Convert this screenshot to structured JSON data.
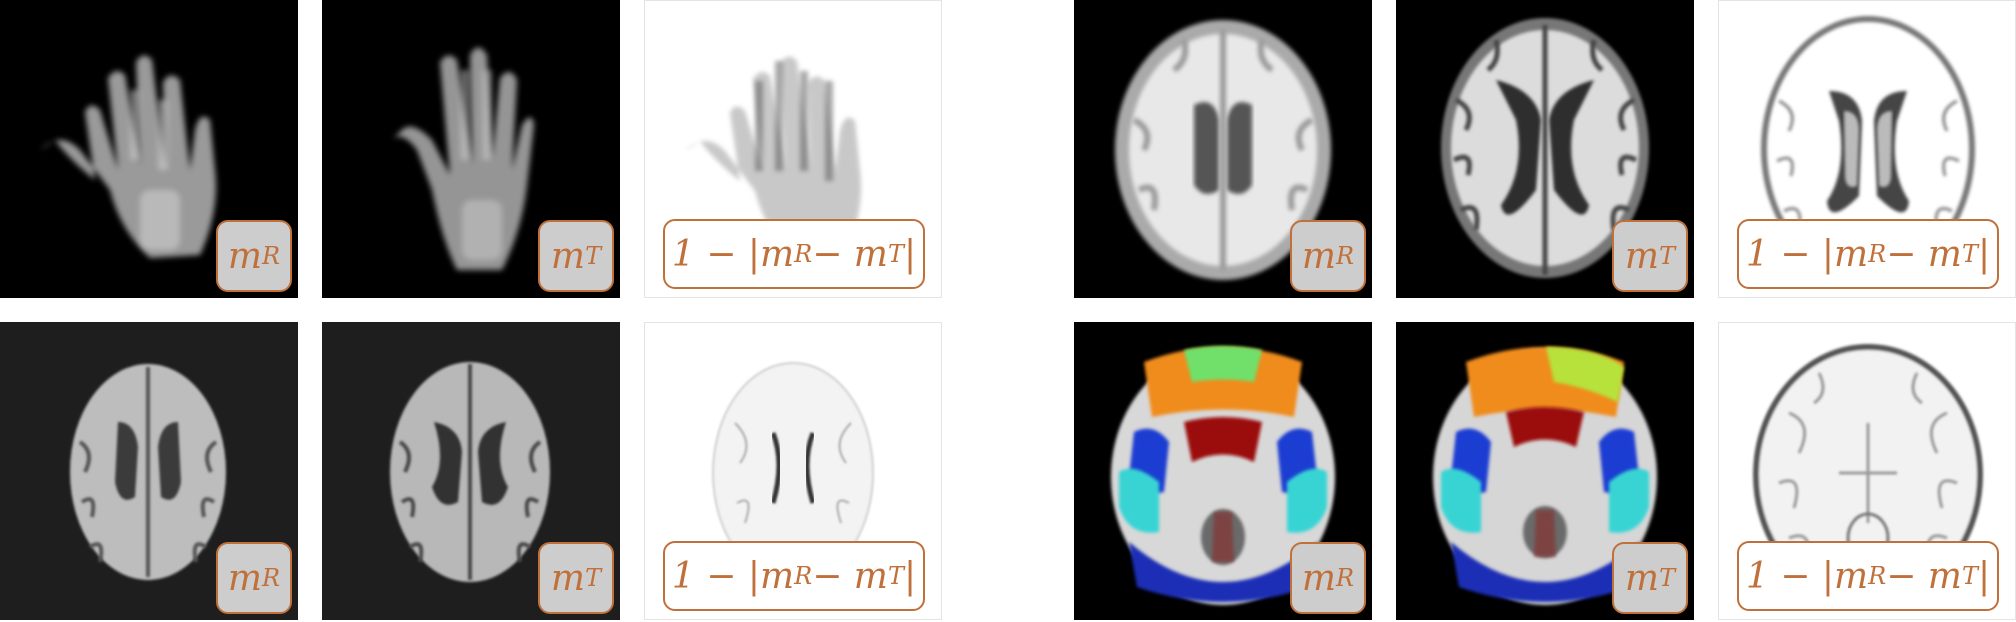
{
  "groups": [
    {
      "name": "hand-xray",
      "panels": [
        {
          "label_main": "m",
          "label_sub": "R"
        },
        {
          "label_main": "m",
          "label_sub": "T"
        },
        {
          "label_text": "1 − |m",
          "label_sub1": "R",
          "label_mid": " − m",
          "label_sub2": "T",
          "label_end": "|"
        }
      ]
    },
    {
      "name": "brain-mri-synthetic",
      "panels": [
        {
          "label_main": "m",
          "label_sub": "R"
        },
        {
          "label_main": "m",
          "label_sub": "T"
        },
        {
          "label_text": "1 − |m",
          "label_sub1": "R",
          "label_mid": " − m",
          "label_sub2": "T",
          "label_end": "|"
        }
      ]
    },
    {
      "name": "brain-mri-real",
      "panels": [
        {
          "label_main": "m",
          "label_sub": "R"
        },
        {
          "label_main": "m",
          "label_sub": "T"
        },
        {
          "label_text": "1 − |m",
          "label_sub1": "R",
          "label_mid": " − m",
          "label_sub2": "T",
          "label_end": "|"
        }
      ]
    },
    {
      "name": "brain-atlas-segmentation",
      "panels": [
        {
          "label_main": "m",
          "label_sub": "R"
        },
        {
          "label_main": "m",
          "label_sub": "T"
        },
        {
          "label_text": "1 − |m",
          "label_sub1": "R",
          "label_mid": " − m",
          "label_sub2": "T",
          "label_end": "|"
        }
      ]
    }
  ],
  "colors": {
    "label_border": "#c0703a",
    "label_bg_gray": "#cdcdcd"
  }
}
